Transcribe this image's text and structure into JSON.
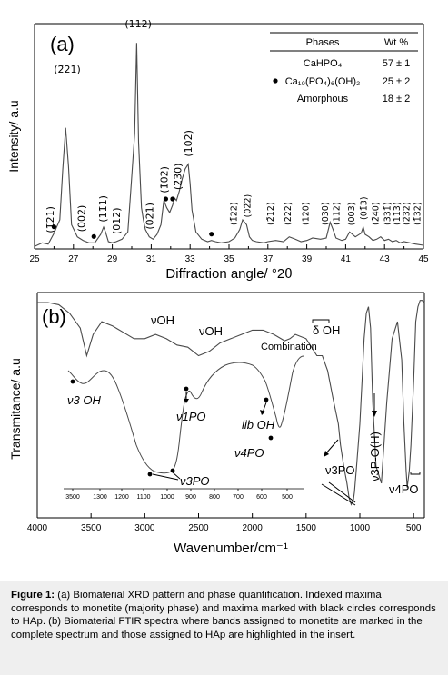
{
  "chart_data": [
    {
      "type": "line",
      "panel_label": "(a)",
      "xlabel": "Diffraction angle/ °2θ",
      "ylabel": "Intensity/ a.u",
      "xlim": [
        25,
        45
      ],
      "x_ticks": [
        "25",
        "27",
        "29",
        "31",
        "33",
        "35",
        "37",
        "39",
        "41",
        "43",
        "45"
      ],
      "y_tick_labels_shown": false,
      "series": [
        {
          "x": [
            25,
            25.4,
            25.7,
            26.0,
            26.3,
            26.45,
            26.6,
            26.75,
            26.9,
            27.2,
            27.5,
            27.8,
            28.1,
            28.4,
            28.55,
            28.65,
            28.8,
            29.0,
            29.2,
            29.5,
            29.8,
            30.0,
            30.15,
            30.25,
            30.35,
            30.5,
            30.6,
            30.7,
            30.9,
            31.1,
            31.3,
            31.5,
            31.65,
            31.8,
            31.95,
            32.1,
            32.2,
            32.3,
            32.45,
            32.6,
            32.75,
            32.9,
            33.0,
            33.1,
            33.3,
            33.6,
            33.9,
            34.1,
            34.3,
            34.6,
            35.0,
            35.3,
            35.55,
            35.7,
            35.9,
            36.05,
            36.2,
            36.4,
            36.8,
            37.0,
            37.4,
            37.8,
            38.1,
            38.4,
            38.7,
            39.0,
            39.3,
            39.7,
            40.0,
            40.2,
            40.35,
            40.5,
            40.8,
            41.0,
            41.2,
            41.5,
            41.8,
            41.9,
            42.0,
            42.2,
            42.4,
            42.6,
            42.8,
            43.0,
            43.2,
            43.4,
            43.6,
            43.8,
            44.0,
            44.3,
            44.6,
            45.0
          ],
          "y": [
            2,
            5,
            4,
            13,
            24,
            65,
            100,
            68,
            20,
            10,
            7,
            5,
            5,
            12,
            18,
            14,
            6,
            5,
            6,
            8,
            14,
            60,
            95,
            170,
            88,
            34,
            24,
            16,
            10,
            8,
            12,
            20,
            40,
            34,
            30,
            36,
            42,
            40,
            48,
            58,
            66,
            70,
            54,
            32,
            14,
            8,
            6,
            7,
            6,
            5,
            6,
            9,
            16,
            24,
            20,
            10,
            7,
            6,
            5,
            6,
            7,
            6,
            10,
            8,
            6,
            7,
            9,
            8,
            9,
            22,
            16,
            9,
            7,
            8,
            14,
            10,
            13,
            18,
            12,
            10,
            7,
            8,
            10,
            7,
            8,
            6,
            7,
            5,
            6,
            5,
            4,
            3
          ]
        }
      ],
      "peak_labels": [
        {
          "text": "(1̄21)",
          "x": 25.8
        },
        {
          "text": "(2̄21)",
          "x": 26.6
        },
        {
          "text": "(002)",
          "x": 27.4
        },
        {
          "text": "(11̄1)",
          "x": 28.5
        },
        {
          "text": "(012)",
          "x": 29.2
        },
        {
          "text": "(112)",
          "x": 30.25
        },
        {
          "text": "(021)",
          "x": 30.9
        },
        {
          "text": "(1̄02)",
          "x": 31.65
        },
        {
          "text": "(2̄30)",
          "x": 32.35
        },
        {
          "text": "(102)",
          "x": 32.9
        },
        {
          "text": "(1̄22)",
          "x": 35.2
        },
        {
          "text": "(02̄2)",
          "x": 35.9
        },
        {
          "text": "(2̄12)",
          "x": 37.1
        },
        {
          "text": "(2̄22)",
          "x": 38.0
        },
        {
          "text": "(120)",
          "x": 38.9
        },
        {
          "text": "(030)",
          "x": 39.9
        },
        {
          "text": "(112)",
          "x": 40.5
        },
        {
          "text": "(003)",
          "x": 41.25
        },
        {
          "text": "(01̄3)",
          "x": 41.9
        },
        {
          "text": "(2̄40)",
          "x": 42.5
        },
        {
          "text": "(331̄)",
          "x": 43.1
        },
        {
          "text": "(11̄3)",
          "x": 43.6
        },
        {
          "text": "(2̄32)",
          "x": 44.1
        },
        {
          "text": "(1̄32)",
          "x": 44.65
        }
      ],
      "hap_markers_x": [
        26.0,
        28.05,
        31.75,
        32.1,
        34.1
      ],
      "table": {
        "headers": [
          "Phases",
          "Wt %"
        ],
        "rows": [
          {
            "phase": "CaHPO₄",
            "marker": false,
            "wt": "57 ± 1"
          },
          {
            "phase": "Ca₁₀(PO₄)₆(OH)₂",
            "marker": true,
            "wt": "25 ± 2"
          },
          {
            "phase": "Amorphous",
            "marker": false,
            "wt": "18 ± 2"
          }
        ]
      }
    },
    {
      "type": "line",
      "panel_label": "(b)",
      "xlabel": "Wavenumber/cm⁻¹",
      "ylabel": "Transmitance/ a.u",
      "xlim": [
        4000,
        400
      ],
      "x_reversed": true,
      "x_ticks": [
        "4000",
        "3500",
        "3000",
        "2500",
        "2000",
        "1500",
        "1000",
        "500"
      ],
      "series": [
        {
          "name": "complete",
          "x": [
            4000,
            3900,
            3800,
            3700,
            3600,
            3540,
            3480,
            3400,
            3300,
            3200,
            3100,
            3000,
            2900,
            2800,
            2700,
            2600,
            2500,
            2400,
            2300,
            2200,
            2100,
            2000,
            1900,
            1800,
            1700,
            1650,
            1600,
            1500,
            1450,
            1400,
            1350,
            1300,
            1250,
            1200,
            1180,
            1150,
            1120,
            1100,
            1080,
            1060,
            1050,
            1030,
            1000,
            980,
            960,
            940,
            920,
            900,
            880,
            850,
            800,
            750,
            700,
            650,
            610,
            590,
            570,
            560,
            540,
            525,
            500,
            480,
            460,
            440,
            420,
            400
          ],
          "y": [
            97,
            97,
            96,
            92,
            85,
            72,
            82,
            88,
            86,
            83,
            80,
            80,
            82,
            80,
            77,
            76,
            72,
            74,
            78,
            80,
            82,
            84,
            84,
            82,
            79,
            80,
            82,
            80,
            76,
            72,
            72,
            65,
            52,
            40,
            30,
            20,
            12,
            5,
            2,
            4,
            8,
            20,
            40,
            60,
            80,
            92,
            95,
            85,
            50,
            20,
            12,
            50,
            80,
            88,
            70,
            40,
            18,
            10,
            18,
            30,
            60,
            88,
            95,
            98,
            98,
            97
          ]
        }
      ],
      "annotations": [
        {
          "text": "νOH",
          "x": 2700
        },
        {
          "text": "νOH",
          "x": 2200
        },
        {
          "text": "δ OH",
          "x": 1300
        },
        {
          "text": "Combination",
          "x": 1500
        },
        {
          "text": "ν3PO",
          "x": 1020
        },
        {
          "text": "ν3P-O(H)",
          "x": 870
        },
        {
          "text": "ν4PO",
          "x": 560
        }
      ],
      "inset": {
        "x_ticks": [
          "3500",
          "1300",
          "1200",
          "1100",
          "1000",
          "900",
          "800",
          "700",
          "600",
          "500"
        ],
        "annotations": [
          {
            "text": "ν3 OH"
          },
          {
            "text": "ν1PO"
          },
          {
            "text": "lib OH"
          },
          {
            "text": "ν4PO"
          },
          {
            "text": "ν3PO"
          }
        ]
      }
    }
  ],
  "caption": {
    "lead": "Figure 1:",
    "text": " (a) Biomaterial XRD pattern and phase quantification. Indexed maxima corresponds to monetite (majority phase) and maxima marked with black circles corresponds to HAp. (b) Biomaterial FTIR spectra where bands assigned to monetite are marked in the complete spectrum and those assigned to HAp are highlighted in the insert."
  },
  "colors": {
    "line": "#4a4a4a",
    "text": "#000000",
    "caption_bg": "#efefef"
  }
}
